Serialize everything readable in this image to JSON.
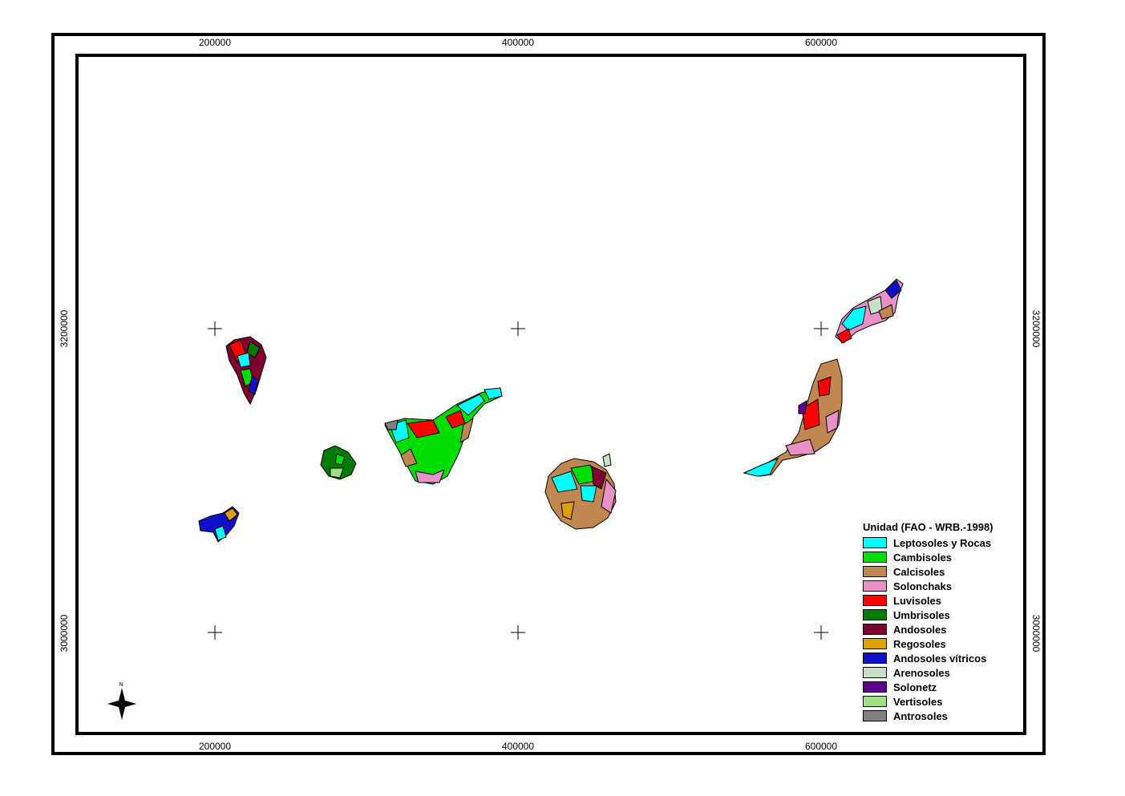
{
  "map": {
    "ticks_top": [
      "200000",
      "400000",
      "600000"
    ],
    "ticks_bottom": [
      "200000",
      "400000",
      "600000"
    ],
    "ticks_left": [
      "3200000",
      "3000000"
    ],
    "ticks_right": [
      "3200000",
      "3000000"
    ],
    "north_arrow_letter": "N"
  },
  "legend": {
    "title": "Unidad (FAO - WRB.-1998)",
    "items": [
      {
        "label": "Leptosoles y Rocas",
        "color": "#00ffff"
      },
      {
        "label": "Cambisoles",
        "color": "#00dd00"
      },
      {
        "label": "Calcisoles",
        "color": "#c08850"
      },
      {
        "label": "Solonchaks",
        "color": "#e890c8"
      },
      {
        "label": "Luvisoles",
        "color": "#ff0000"
      },
      {
        "label": "Umbrisoles",
        "color": "#007a00"
      },
      {
        "label": "Andosoles",
        "color": "#800030"
      },
      {
        "label": "Regosoles",
        "color": "#e0a000"
      },
      {
        "label": "Andosoles vítricos",
        "color": "#1010c8"
      },
      {
        "label": "Arenosoles",
        "color": "#c8e0c8"
      },
      {
        "label": "Solonetz",
        "color": "#600090"
      },
      {
        "label": "Vertisoles",
        "color": "#a0e080"
      },
      {
        "label": "Antrosoles",
        "color": "#808080"
      }
    ]
  }
}
